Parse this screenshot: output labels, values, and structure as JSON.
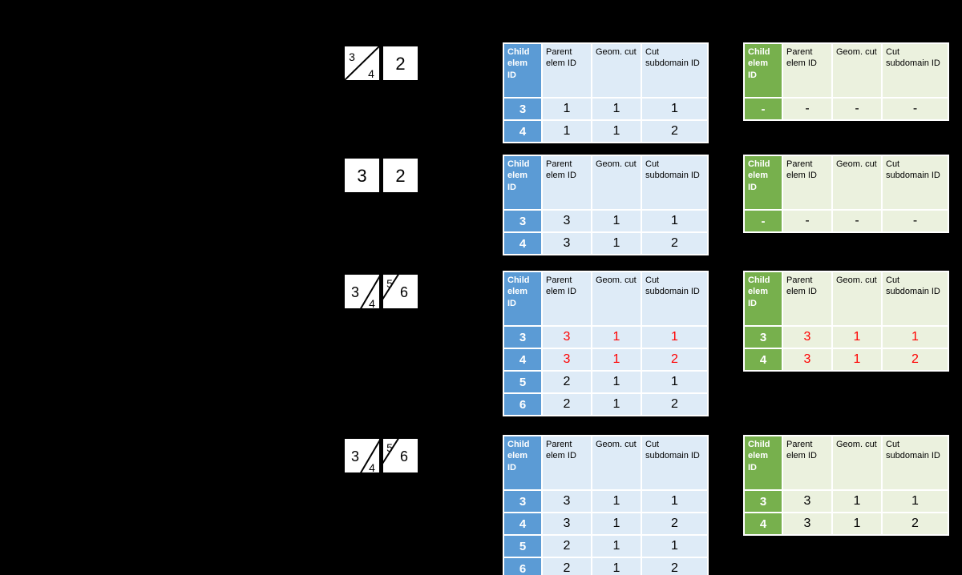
{
  "colors": {
    "background": "#000000",
    "table_blue": "#5B9BD5",
    "table_blue_light": "#DEEBF7",
    "table_green": "#77B04D",
    "table_green_light": "#EBF1DE",
    "highlight_red": "#FF0000",
    "gridline": "#FFFFFF"
  },
  "table_headers": [
    "Child elem ID",
    "Parent elem ID",
    "Geom. cut",
    "Cut subdomain ID"
  ],
  "cases": [
    {
      "diagram": {
        "variant": "left-square-diagonal-cut",
        "labels": [
          "3",
          "4",
          "2"
        ]
      },
      "blue_table": {
        "rows": [
          {
            "cells": [
              "3",
              "1",
              "1",
              "1"
            ],
            "highlight": false
          },
          {
            "cells": [
              "4",
              "1",
              "1",
              "2"
            ],
            "highlight": false
          }
        ]
      },
      "green_table": {
        "rows": [
          {
            "cells": [
              "-",
              "-",
              "-",
              "-"
            ],
            "highlight": false
          }
        ]
      }
    },
    {
      "diagram": {
        "variant": "two-plain-squares",
        "labels": [
          "3",
          "2"
        ]
      },
      "blue_table": {
        "rows": [
          {
            "cells": [
              "3",
              "3",
              "1",
              "1"
            ],
            "highlight": false
          },
          {
            "cells": [
              "4",
              "3",
              "1",
              "2"
            ],
            "highlight": false
          }
        ]
      },
      "green_table": {
        "rows": [
          {
            "cells": [
              "-",
              "-",
              "-",
              "-"
            ],
            "highlight": false
          }
        ]
      }
    },
    {
      "diagram": {
        "variant": "both-squares-corner-cuts",
        "labels": [
          "3",
          "4",
          "5",
          "6"
        ]
      },
      "blue_table": {
        "rows": [
          {
            "cells": [
              "3",
              "3",
              "1",
              "1"
            ],
            "highlight": true
          },
          {
            "cells": [
              "4",
              "3",
              "1",
              "2"
            ],
            "highlight": true
          },
          {
            "cells": [
              "5",
              "2",
              "1",
              "1"
            ],
            "highlight": false
          },
          {
            "cells": [
              "6",
              "2",
              "1",
              "2"
            ],
            "highlight": false
          }
        ]
      },
      "green_table": {
        "rows": [
          {
            "cells": [
              "3",
              "3",
              "1",
              "1"
            ],
            "highlight": true
          },
          {
            "cells": [
              "4",
              "3",
              "1",
              "2"
            ],
            "highlight": true
          }
        ]
      }
    },
    {
      "diagram": {
        "variant": "both-squares-corner-cuts",
        "labels": [
          "3",
          "4",
          "5",
          "6"
        ]
      },
      "blue_table": {
        "rows": [
          {
            "cells": [
              "3",
              "3",
              "1",
              "1"
            ],
            "highlight": false
          },
          {
            "cells": [
              "4",
              "3",
              "1",
              "2"
            ],
            "highlight": false
          },
          {
            "cells": [
              "5",
              "2",
              "1",
              "1"
            ],
            "highlight": false
          },
          {
            "cells": [
              "6",
              "2",
              "1",
              "2"
            ],
            "highlight": false
          }
        ]
      },
      "green_table": {
        "rows": [
          {
            "cells": [
              "3",
              "3",
              "1",
              "1"
            ],
            "highlight": false
          },
          {
            "cells": [
              "4",
              "3",
              "1",
              "2"
            ],
            "highlight": false
          }
        ]
      }
    }
  ]
}
